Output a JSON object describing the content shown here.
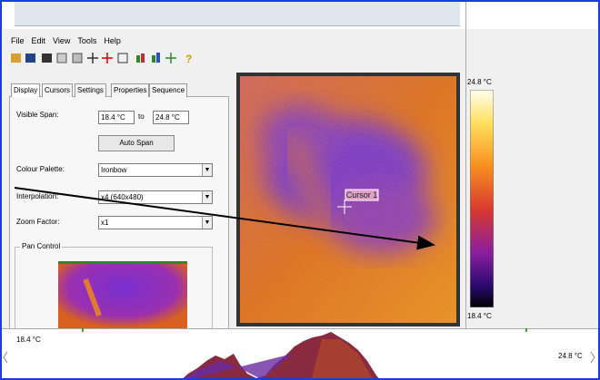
{
  "menu": [
    "File",
    "Edit",
    "View",
    "Tools",
    "Help"
  ],
  "tabs": [
    "Display",
    "Cursors",
    "Settings",
    "Properties",
    "Sequence"
  ],
  "display": {
    "visible_span_label": "Visible Span:",
    "span_min": "18.4 °C",
    "to": "to",
    "span_max": "24.8 °C",
    "auto_span": "Auto Span",
    "palette_label": "Colour Palette:",
    "palette": "Ironbow",
    "interpolation_label": "Interpolation:",
    "interpolation": "x4 (640x480)",
    "zoom_label": "Zoom Factor:",
    "zoom": "x1",
    "pan_control": "Pan Control"
  },
  "image": {
    "cursor_label": "Cursor 1"
  },
  "colorbar": {
    "max_label": "24.8 °C",
    "min_label": "18.4 °C"
  },
  "histogram": {
    "min_label": "18.4 °C",
    "max_label": "24.8 °C"
  }
}
